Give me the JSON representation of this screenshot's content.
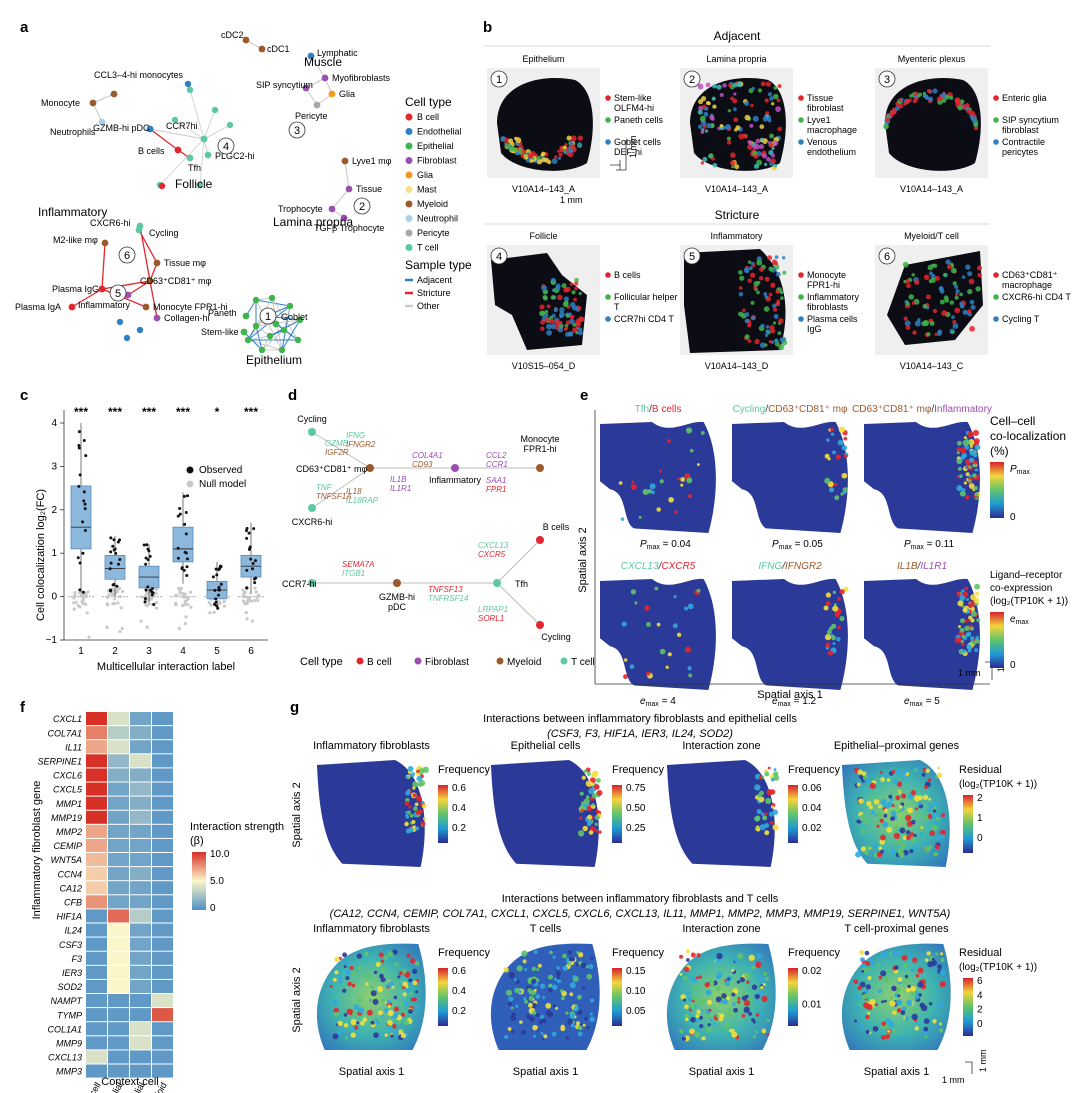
{
  "panels": {
    "a": {
      "label": "a",
      "groups": [
        "Follicle",
        "Muscle",
        "Lamina propria",
        "Inflammatory",
        "Epithelium"
      ],
      "nodes": [
        "cDC2",
        "cDC1",
        "CCL3–4-hi monocytes",
        "Monocyte",
        "Neutrophils",
        "GZMB-hi pDC",
        "CCR7hi",
        "B cells",
        "Tfh",
        "PLGC2-hi",
        "Lymphatic",
        "SIP syncytium",
        "Myofibroblasts",
        "Glia",
        "Pericyte",
        "Lyve1 mφ",
        "Tissue",
        "Trophocyte",
        "TGFβ Trophocyte",
        "CXCR6-hi",
        "Cycling",
        "M2-like mφ",
        "Tissue mφ",
        "CD63⁺CD81⁺ mφ",
        "Plasma IgG",
        "Plasma IgA",
        "Inflammatory",
        "Monocyte FPR1-hi",
        "Collagen-hi",
        "Paneth",
        "Goblet",
        "Stem-like"
      ],
      "module_numbers": [
        "1",
        "2",
        "3",
        "4",
        "5",
        "6"
      ],
      "legend_cell_title": "Cell type",
      "cell_types": [
        {
          "name": "B cell",
          "color": "#e3262d"
        },
        {
          "name": "Endothelial",
          "color": "#2f7fc1"
        },
        {
          "name": "Epithelial",
          "color": "#3fb44a"
        },
        {
          "name": "Fibroblast",
          "color": "#9b4fb0"
        },
        {
          "name": "Glia",
          "color": "#f39a1b"
        },
        {
          "name": "Mast",
          "color": "#f3e08a"
        },
        {
          "name": "Myeloid",
          "color": "#9a5a2c"
        },
        {
          "name": "Neutrophil",
          "color": "#a8d0ea"
        },
        {
          "name": "Pericyte",
          "color": "#a7a7a7"
        },
        {
          "name": "T cell",
          "color": "#5cc8a4"
        }
      ],
      "legend_sample_title": "Sample type",
      "sample_types": [
        {
          "name": "Adjacent",
          "color": "#2f7fc1"
        },
        {
          "name": "Stricture",
          "color": "#e3262d"
        },
        {
          "name": "Other",
          "color": "#cccccc"
        }
      ]
    },
    "b": {
      "label": "b",
      "row1_title": "Adjacent",
      "row2_title": "Stricture",
      "scale": "1 mm",
      "tiles": [
        {
          "num": "1",
          "title": "Epithelium",
          "sample": "V10A14–143_A",
          "legend": [
            "Stem-like OLFM4-hi",
            "Paneth cells",
            "Goblet cells DEF-hi"
          ]
        },
        {
          "num": "2",
          "title": "Lamina propria",
          "sample": "V10A14–143_A",
          "legend": [
            "Tissue fibroblast",
            "Lyve1 macrophage",
            "Venous endothelium"
          ]
        },
        {
          "num": "3",
          "title": "Myenteric plexus",
          "sample": "V10A14–143_A",
          "legend": [
            "Enteric glia",
            "SIP syncytium fibroblast",
            "Contractile pericytes"
          ]
        },
        {
          "num": "4",
          "title": "Follicle",
          "sample": "V10S15–054_D",
          "legend": [
            "B cells",
            "Follicular helper T",
            "CCR7hi CD4 T"
          ]
        },
        {
          "num": "5",
          "title": "Inflammatory",
          "sample": "V10A14–143_D",
          "legend": [
            "Monocyte FPR1-hi",
            "Inflammatory fibroblasts",
            "Plasma cells IgG"
          ]
        },
        {
          "num": "6",
          "title": "Myeloid/T cell",
          "sample": "V10A14–143_C",
          "legend": [
            "CD63⁺CD81⁺ macrophage",
            "CXCR6-hi CD4 T",
            "Cycling T"
          ]
        }
      ]
    },
    "c": {
      "label": "c",
      "legend": [
        "Observed",
        "Null model"
      ]
    },
    "d": {
      "label": "d",
      "nodes": [
        "Cycling",
        "CD63⁺CD81⁺ mφ",
        "CXCR6-hi",
        "Inflammatory",
        "Monocyte FPR1-hi",
        "CCR7-hi",
        "GZMB-hi pDC",
        "Tfh",
        "B cells",
        "Cycling"
      ],
      "edge_labels": [
        "GZMB",
        "IGF2R",
        "IFNG",
        "IFNGR2",
        "TNF",
        "TNFSF1A",
        "IL18",
        "IL18RAP",
        "IL1B",
        "IL1R1",
        "COL4A1",
        "CD93",
        "CCL2",
        "CCR1",
        "SAA1",
        "FPR1",
        "SEMA7A",
        "ITGB1",
        "TNFSF13",
        "TNFRSF14",
        "CXCL13",
        "CXCR5",
        "LRPAP1",
        "SORL1"
      ],
      "legend_title": "Cell type",
      "legend": [
        {
          "name": "B cell",
          "color": "#e3262d"
        },
        {
          "name": "Fibroblast",
          "color": "#9b4fb0"
        },
        {
          "name": "Myeloid",
          "color": "#9a5a2c"
        },
        {
          "name": "T cell",
          "color": "#5cc8a4"
        }
      ]
    },
    "e": {
      "label": "e",
      "row1": [
        {
          "a": "Tfh",
          "b": "B cells",
          "sep": "/",
          "stat": "P",
          "statsub": "max",
          "val": " = 0.04"
        },
        {
          "a": "Cycling",
          "b": "CD63⁺CD81⁺ mφ",
          "sep": "/",
          "stat": "P",
          "statsub": "max",
          "val": " = 0.05"
        },
        {
          "a": "CD63⁺CD81⁺ mφ",
          "b": "Inflammatory",
          "sep": "/",
          "stat": "P",
          "statsub": "max",
          "val": " = 0.11"
        }
      ],
      "row2": [
        {
          "a": "CXCL13",
          "b": "CXCR5",
          "sep": "/",
          "stat": "e",
          "statsub": "max",
          "val": " = 4"
        },
        {
          "a": "IFNG",
          "b": "IFNGR2",
          "sep": "/",
          "stat": "e",
          "statsub": "max",
          "val": " = 1.2"
        },
        {
          "a": "IL1B",
          "b": "IL1R1",
          "sep": "/",
          "stat": "e",
          "statsub": "max",
          "val": " = 5"
        }
      ],
      "yaxis": "Spatial axis 2",
      "xaxis": "Spatial axis 1",
      "scale": "1 mm",
      "cb1_title1": "Cell–cell",
      "cb1_title2": "co-localization",
      "cb1_title3": "(%)",
      "cb1_max": "P",
      "cb1_max_sub": "max",
      "cb1_min": "0",
      "cb2_title1": "Ligand–receptor",
      "cb2_title2": "co-expression",
      "cb2_title3": "(log₂(TP10K + 1))",
      "cb2_max": "e",
      "cb2_max_sub": "max",
      "cb2_min": "0"
    },
    "f": {
      "label": "f",
      "ylabel": "Inflammatory fibroblast gene",
      "xlabel": "Context cell",
      "colorbar_title": "Interaction strength (β)",
      "colorbar_ticks": [
        "10.0",
        "5.0",
        "0"
      ]
    },
    "g": {
      "label": "g",
      "title1": "Interactions between inflammatory fibroblasts and epithelial cells",
      "genes1": "(CSF3, F3, HIF1A, IER3, IL24, SOD2)",
      "title2": "Interactions between inflammatory fibroblasts and T cells",
      "genes2": "(CA12, CCN4, CEMIP, COL7A1, CXCL1, CXCL5, CXCL6, CXCL13, IL11, MMP1, MMP2, MMP3, MMP19, SERPINE1, WNT5A)",
      "row1": [
        {
          "title": "Inflammatory fibroblasts",
          "cb": "Frequency",
          "ticks": [
            "0.6",
            "0.4",
            "0.2"
          ]
        },
        {
          "title": "Epithelial cells",
          "cb": "Frequency",
          "ticks": [
            "0.75",
            "0.50",
            "0.25"
          ]
        },
        {
          "title": "Interaction zone",
          "cb": "Frequency",
          "ticks": [
            "0.06",
            "0.04",
            "0.02"
          ]
        },
        {
          "title": "Epithelial–proximal genes",
          "cb": "Residual",
          "cb2": "(log₂(TP10K + 1))",
          "ticks": [
            "2",
            "1",
            "0"
          ]
        }
      ],
      "row2": [
        {
          "title": "Inflammatory fibroblasts",
          "cb": "Frequency",
          "ticks": [
            "0.6",
            "0.4",
            "0.2"
          ]
        },
        {
          "title": "T cells",
          "cb": "Frequency",
          "ticks": [
            "0.15",
            "0.10",
            "0.05"
          ]
        },
        {
          "title": "Interaction zone",
          "cb": "Frequency",
          "ticks": [
            "0.02",
            "0.01"
          ]
        },
        {
          "title": "T cell-proximal genes",
          "cb": "Residual",
          "cb2": "(log₂(TP10K + 1))",
          "ticks": [
            "6",
            "4",
            "2",
            "0"
          ]
        }
      ],
      "yaxis": "Spatial axis 2",
      "xaxis": "Spatial axis 1",
      "scale": "1 mm"
    }
  },
  "chart_data": [
    {
      "type": "box",
      "title": "",
      "xlabel": "Multicellular interaction label",
      "ylabel": "Cell colocalization log₂(FC)",
      "categories": [
        "1",
        "2",
        "3",
        "4",
        "5",
        "6"
      ],
      "ylim": [
        -1,
        4.3
      ],
      "yticks": [
        "−1",
        "0",
        "1",
        "2",
        "3",
        "4"
      ],
      "significance": [
        "***",
        "***",
        "***",
        "***",
        "*",
        "***"
      ],
      "observed_box": [
        {
          "q1": 1.1,
          "median": 1.6,
          "q3": 2.55,
          "wlo": 0.1,
          "whi": 4.0
        },
        {
          "q1": 0.4,
          "median": 0.65,
          "q3": 0.95,
          "wlo": 0.0,
          "whi": 1.4
        },
        {
          "q1": 0.2,
          "median": 0.45,
          "q3": 0.7,
          "wlo": -0.2,
          "whi": 1.2
        },
        {
          "q1": 0.8,
          "median": 1.1,
          "q3": 1.6,
          "wlo": 0.3,
          "whi": 2.4
        },
        {
          "q1": -0.05,
          "median": 0.15,
          "q3": 0.35,
          "wlo": -0.3,
          "whi": 0.8
        },
        {
          "q1": 0.45,
          "median": 0.7,
          "q3": 0.95,
          "wlo": 0.1,
          "whi": 1.7
        }
      ],
      "null_model_median": [
        0,
        0,
        0,
        0,
        0,
        0
      ]
    },
    {
      "type": "heatmap",
      "title": "",
      "rows": [
        "CXCL1",
        "COL7A1",
        "IL11",
        "SERPINE1",
        "CXCL6",
        "CXCL5",
        "MMP1",
        "MMP19",
        "MMP2",
        "CEMIP",
        "WNT5A",
        "CCN4",
        "CA12",
        "CFB",
        "HIF1A",
        "IL24",
        "CSF3",
        "F3",
        "IER3",
        "SOD2",
        "NAMPT",
        "TYMP",
        "COL1A1",
        "MMP9",
        "CXCL13",
        "MMP3"
      ],
      "columns": [
        "T cell",
        "Epithelial",
        "Endothelial",
        "Myeloid"
      ],
      "values": [
        [
          10,
          4,
          1,
          0.5
        ],
        [
          8,
          3,
          1.5,
          0.5
        ],
        [
          7,
          4,
          1,
          0.5
        ],
        [
          10,
          2,
          4,
          0.5
        ],
        [
          10,
          1.5,
          1.5,
          0.5
        ],
        [
          10,
          1,
          2,
          0.5
        ],
        [
          10,
          1,
          1.5,
          0.5
        ],
        [
          10,
          1,
          2,
          0.5
        ],
        [
          7,
          1,
          1,
          0.5
        ],
        [
          7,
          1,
          1,
          0.5
        ],
        [
          6.5,
          1,
          1,
          0.5
        ],
        [
          6,
          1,
          1.5,
          0.5
        ],
        [
          6,
          1,
          1,
          0.5
        ],
        [
          7.5,
          1,
          1,
          0.5
        ],
        [
          0.5,
          8.5,
          3,
          0.5
        ],
        [
          0.5,
          5,
          1,
          0.5
        ],
        [
          0.5,
          5,
          1,
          0.5
        ],
        [
          0.5,
          5,
          1,
          0.5
        ],
        [
          0.5,
          5,
          1,
          0.5
        ],
        [
          0.5,
          5,
          1,
          0.5
        ],
        [
          0.5,
          0.5,
          0.5,
          4
        ],
        [
          0.5,
          0.5,
          0.5,
          9
        ],
        [
          0.5,
          0.5,
          4,
          0.5
        ],
        [
          0.5,
          0.5,
          4,
          0.5
        ],
        [
          4,
          0.5,
          0.5,
          0.5
        ],
        [
          0.5,
          0.5,
          0.5,
          0.5
        ]
      ],
      "vmin": 0,
      "vmax": 10
    }
  ]
}
